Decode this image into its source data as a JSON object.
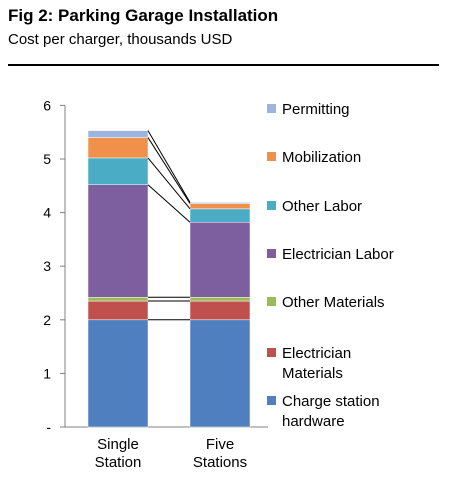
{
  "title": "Fig 2: Parking Garage Installation",
  "subtitle": "Cost per charger, thousands USD",
  "colors": {
    "Charge station hardware": "#4f7fbe",
    "Electrician Materials": "#c0504d",
    "Other Materials": "#9bbb59",
    "Electrician Labor": "#7d5fa0",
    "Other Labor": "#4bacc6",
    "Mobilization": "#f0904a",
    "Permitting": "#9db5dc"
  },
  "chart_data": {
    "type": "bar",
    "stacked": true,
    "title": "Fig 2: Parking Garage Installation",
    "subtitle": "Cost per charger, thousands USD",
    "categories": [
      [
        "Single",
        "Station"
      ],
      [
        "Five",
        "Stations"
      ]
    ],
    "yticks": [
      "-",
      "1",
      "2",
      "3",
      "4",
      "5",
      "6"
    ],
    "ylim": [
      0,
      6
    ],
    "legend_position": "right",
    "series": [
      {
        "name": "Charge station hardware",
        "legend": [
          "Charge station",
          "hardware"
        ],
        "values": [
          2.0,
          2.0
        ]
      },
      {
        "name": "Electrician Materials",
        "legend": [
          "Electrician",
          "Materials"
        ],
        "values": [
          0.35,
          0.35
        ]
      },
      {
        "name": "Other Materials",
        "legend": [
          "Other Materials"
        ],
        "values": [
          0.07,
          0.07
        ]
      },
      {
        "name": "Electrician Labor",
        "legend": [
          "Electrician Labor"
        ],
        "values": [
          2.1,
          1.4
        ]
      },
      {
        "name": "Other Labor",
        "legend": [
          "Other Labor"
        ],
        "values": [
          0.5,
          0.25
        ]
      },
      {
        "name": "Mobilization",
        "legend": [
          "Mobilization"
        ],
        "values": [
          0.38,
          0.1
        ]
      },
      {
        "name": "Permitting",
        "legend": [
          "Permitting"
        ],
        "values": [
          0.13,
          0.02
        ]
      }
    ]
  }
}
